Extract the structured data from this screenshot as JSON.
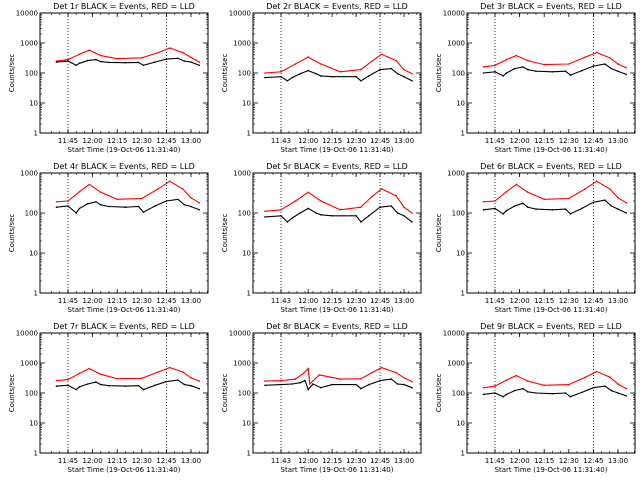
{
  "chart_data": [
    {
      "type": "line",
      "title": "Det 1r BLACK = Events, RED = LLD",
      "xlabel": "Start Time (19-Oct-06 11:31:40)",
      "ylabel": "Counts/sec",
      "yscale": "log",
      "ylim": [
        1,
        10000
      ],
      "xticks": [
        "11:45",
        "12:00",
        "12:15",
        "12:30",
        "12:45",
        "13:00"
      ],
      "yticks": [
        "1",
        "10",
        "100",
        "1000",
        "10000"
      ],
      "series": [
        {
          "name": "Events",
          "color": "#000000",
          "x": [
            "11:38",
            "11:45",
            "11:50",
            "11:52",
            "11:57",
            "12:02",
            "12:05",
            "12:10",
            "12:20",
            "12:28",
            "12:31",
            "12:38",
            "12:45",
            "12:52",
            "12:56",
            "13:00",
            "13:05"
          ],
          "y": [
            230,
            250,
            180,
            210,
            260,
            280,
            240,
            225,
            220,
            225,
            180,
            230,
            290,
            310,
            250,
            230,
            180
          ]
        },
        {
          "name": "LLD",
          "color": "#ff0000",
          "x": [
            "11:38",
            "11:45",
            "11:52",
            "11:58",
            "12:05",
            "12:15",
            "12:30",
            "12:40",
            "12:47",
            "12:55",
            "13:00",
            "13:05"
          ],
          "y": [
            250,
            280,
            420,
            580,
            380,
            300,
            320,
            480,
            680,
            480,
            330,
            230
          ]
        }
      ]
    },
    {
      "type": "line",
      "title": "Det 2r BLACK = Events, RED = LLD",
      "xlabel": "Start Time (19-Oct-06 11:31:40)",
      "ylabel": "Counts/sec",
      "yscale": "log",
      "ylim": [
        1,
        10000
      ],
      "xticks": [
        "11:43",
        "12:00",
        "12:15",
        "12:30",
        "12:45",
        "13:00"
      ],
      "yticks": [
        "1",
        "10",
        "100",
        "1000",
        "10000"
      ],
      "series": [
        {
          "name": "Events",
          "color": "#000000",
          "x": [
            "11:33",
            "11:43",
            "11:47",
            "11:50",
            "11:55",
            "12:00",
            "12:05",
            "12:08",
            "12:15",
            "12:30",
            "12:33",
            "12:38",
            "12:45",
            "12:52",
            "12:56",
            "13:00",
            "13:05"
          ],
          "y": [
            70,
            75,
            55,
            70,
            95,
            120,
            95,
            80,
            75,
            75,
            55,
            80,
            130,
            140,
            95,
            75,
            55
          ]
        },
        {
          "name": "LLD",
          "color": "#ff0000",
          "x": [
            "11:33",
            "11:43",
            "11:52",
            "12:00",
            "12:08",
            "12:20",
            "12:33",
            "12:40",
            "12:46",
            "12:55",
            "13:00",
            "13:05"
          ],
          "y": [
            100,
            110,
            200,
            340,
            200,
            110,
            130,
            250,
            420,
            260,
            130,
            95
          ]
        }
      ]
    },
    {
      "type": "line",
      "title": "Det 3r BLACK = Events, RED = LLD",
      "xlabel": "Start Time (19-Oct-06 11:31:40)",
      "ylabel": "Counts/sec",
      "yscale": "log",
      "ylim": [
        1,
        10000
      ],
      "xticks": [
        "11:45",
        "12:00",
        "12:15",
        "12:30",
        "12:45",
        "13:00"
      ],
      "yticks": [
        "1",
        "10",
        "100",
        "1000",
        "10000"
      ],
      "series": [
        {
          "name": "Events",
          "color": "#000000",
          "x": [
            "11:38",
            "11:45",
            "11:50",
            "11:52",
            "11:57",
            "12:02",
            "12:05",
            "12:10",
            "12:20",
            "12:28",
            "12:31",
            "12:38",
            "12:45",
            "12:52",
            "12:56",
            "13:00",
            "13:05"
          ],
          "y": [
            100,
            110,
            80,
            100,
            140,
            160,
            130,
            115,
            110,
            115,
            85,
            120,
            170,
            200,
            140,
            115,
            90
          ]
        },
        {
          "name": "LLD",
          "color": "#ff0000",
          "x": [
            "11:38",
            "11:45",
            "11:52",
            "11:58",
            "12:05",
            "12:15",
            "12:30",
            "12:40",
            "12:47",
            "12:55",
            "13:00",
            "13:05"
          ],
          "y": [
            160,
            180,
            280,
            380,
            260,
            190,
            200,
            340,
            480,
            320,
            200,
            150
          ]
        }
      ]
    },
    {
      "type": "line",
      "title": "Det 4r BLACK = Events, RED = LLD",
      "xlabel": "Start Time (19-Oct-06 11:31:40)",
      "ylabel": "Counts/sec",
      "yscale": "log",
      "ylim": [
        1,
        1000
      ],
      "xticks": [
        "11:45",
        "12:00",
        "12:15",
        "12:30",
        "12:45",
        "13:00"
      ],
      "yticks": [
        "1",
        "10",
        "100",
        "1000"
      ],
      "series": [
        {
          "name": "Events",
          "color": "#000000",
          "x": [
            "11:38",
            "11:45",
            "11:50",
            "11:52",
            "11:57",
            "12:02",
            "12:05",
            "12:10",
            "12:20",
            "12:28",
            "12:31",
            "12:38",
            "12:45",
            "12:52",
            "12:56",
            "13:00",
            "13:05"
          ],
          "y": [
            140,
            150,
            100,
            130,
            170,
            190,
            160,
            145,
            140,
            145,
            105,
            150,
            200,
            220,
            160,
            145,
            120
          ]
        },
        {
          "name": "LLD",
          "color": "#ff0000",
          "x": [
            "11:38",
            "11:45",
            "11:52",
            "11:58",
            "12:05",
            "12:15",
            "12:30",
            "12:40",
            "12:47",
            "12:55",
            "13:00",
            "13:05"
          ],
          "y": [
            190,
            200,
            340,
            520,
            330,
            220,
            230,
            400,
            620,
            400,
            240,
            180
          ]
        }
      ]
    },
    {
      "type": "line",
      "title": "Det 5r BLACK = Events, RED = LLD",
      "xlabel": "Start Time (19-Oct-06 11:31:40)",
      "ylabel": "Counts/sec",
      "yscale": "log",
      "ylim": [
        1,
        1000
      ],
      "xticks": [
        "11:43",
        "12:00",
        "12:15",
        "12:30",
        "12:45",
        "13:00"
      ],
      "yticks": [
        "1",
        "10",
        "100",
        "1000"
      ],
      "series": [
        {
          "name": "Events",
          "color": "#000000",
          "x": [
            "11:33",
            "11:43",
            "11:47",
            "11:50",
            "11:55",
            "12:00",
            "12:05",
            "12:08",
            "12:15",
            "12:30",
            "12:33",
            "12:38",
            "12:45",
            "12:52",
            "12:56",
            "13:00",
            "13:05"
          ],
          "y": [
            80,
            85,
            60,
            75,
            100,
            130,
            100,
            90,
            85,
            85,
            60,
            85,
            140,
            150,
            100,
            85,
            60
          ]
        },
        {
          "name": "LLD",
          "color": "#ff0000",
          "x": [
            "11:33",
            "11:43",
            "11:52",
            "12:00",
            "12:08",
            "12:20",
            "12:33",
            "12:40",
            "12:46",
            "12:55",
            "13:00",
            "13:05"
          ],
          "y": [
            110,
            120,
            200,
            330,
            200,
            120,
            140,
            260,
            400,
            270,
            140,
            100
          ]
        }
      ]
    },
    {
      "type": "line",
      "title": "Det 6r BLACK = Events, RED = LLD",
      "xlabel": "Start Time (19-Oct-06 11:31:40)",
      "ylabel": "Counts/sec",
      "yscale": "log",
      "ylim": [
        1,
        1000
      ],
      "xticks": [
        "11:45",
        "12:00",
        "12:15",
        "12:30",
        "12:45",
        "13:00"
      ],
      "yticks": [
        "1",
        "10",
        "100",
        "1000"
      ],
      "series": [
        {
          "name": "Events",
          "color": "#000000",
          "x": [
            "11:38",
            "11:45",
            "11:50",
            "11:52",
            "11:57",
            "12:02",
            "12:05",
            "12:10",
            "12:20",
            "12:28",
            "12:31",
            "12:38",
            "12:45",
            "12:52",
            "12:56",
            "13:00",
            "13:05"
          ],
          "y": [
            120,
            130,
            95,
            115,
            150,
            175,
            140,
            125,
            120,
            125,
            95,
            130,
            185,
            210,
            150,
            125,
            100
          ]
        },
        {
          "name": "LLD",
          "color": "#ff0000",
          "x": [
            "11:38",
            "11:45",
            "11:52",
            "11:58",
            "12:05",
            "12:15",
            "12:30",
            "12:40",
            "12:47",
            "12:55",
            "13:00",
            "13:05"
          ],
          "y": [
            190,
            200,
            340,
            520,
            330,
            220,
            230,
            400,
            620,
            400,
            240,
            180
          ]
        }
      ]
    },
    {
      "type": "line",
      "title": "Det 7r BLACK = Events, RED = LLD",
      "xlabel": "Start Time (19-Oct-06 11:31:40)",
      "ylabel": "Counts/sec",
      "yscale": "log",
      "ylim": [
        1,
        10000
      ],
      "xticks": [
        "11:45",
        "12:00",
        "12:15",
        "12:30",
        "12:45",
        "13:00"
      ],
      "yticks": [
        "1",
        "10",
        "100",
        "1000",
        "10000"
      ],
      "series": [
        {
          "name": "Events",
          "color": "#000000",
          "x": [
            "11:38",
            "11:45",
            "11:50",
            "11:52",
            "11:57",
            "12:02",
            "12:05",
            "12:10",
            "12:20",
            "12:28",
            "12:31",
            "12:38",
            "12:45",
            "12:52",
            "12:56",
            "13:00",
            "13:05"
          ],
          "y": [
            170,
            180,
            130,
            160,
            200,
            230,
            190,
            175,
            170,
            175,
            130,
            180,
            240,
            270,
            190,
            175,
            140
          ]
        },
        {
          "name": "LLD",
          "color": "#ff0000",
          "x": [
            "11:38",
            "11:45",
            "11:52",
            "11:58",
            "12:05",
            "12:15",
            "12:30",
            "12:40",
            "12:47",
            "12:55",
            "13:00",
            "13:05"
          ],
          "y": [
            260,
            280,
            450,
            650,
            420,
            300,
            310,
            500,
            700,
            500,
            320,
            250
          ]
        }
      ]
    },
    {
      "type": "line",
      "title": "Det 8r BLACK = Events, RED = LLD",
      "xlabel": "Start Time (19-Oct-06 11:31:40)",
      "ylabel": "Counts/sec",
      "yscale": "log",
      "ylim": [
        1,
        10000
      ],
      "xticks": [
        "11:43",
        "12:00",
        "12:15",
        "12:30",
        "12:45",
        "13:00"
      ],
      "yticks": [
        "1",
        "10",
        "100",
        "1000",
        "10000"
      ],
      "series": [
        {
          "name": "Events",
          "color": "#000000",
          "x": [
            "11:33",
            "11:43",
            "11:50",
            "11:55",
            "11:58",
            "12:00",
            "12:03",
            "12:08",
            "12:15",
            "12:30",
            "12:33",
            "12:38",
            "12:45",
            "12:52",
            "12:56",
            "13:00",
            "13:05"
          ],
          "y": [
            180,
            190,
            200,
            220,
            260,
            130,
            200,
            150,
            190,
            190,
            140,
            190,
            260,
            290,
            200,
            190,
            150
          ]
        },
        {
          "name": "LLD",
          "color": "#ff0000",
          "x": [
            "11:33",
            "11:43",
            "11:52",
            "11:57",
            "12:00",
            "12:01",
            "12:07",
            "12:20",
            "12:33",
            "12:40",
            "12:46",
            "12:55",
            "13:00",
            "13:05"
          ],
          "y": [
            250,
            260,
            290,
            450,
            650,
            200,
            400,
            290,
            300,
            480,
            700,
            480,
            320,
            240
          ]
        }
      ]
    },
    {
      "type": "line",
      "title": "Det 9r BLACK = Events, RED = LLD",
      "xlabel": "Start Time (19-Oct-06 11:31:40)",
      "ylabel": "Counts/sec",
      "yscale": "log",
      "ylim": [
        1,
        10000
      ],
      "xticks": [
        "11:45",
        "12:00",
        "12:15",
        "12:30",
        "12:45",
        "13:00"
      ],
      "yticks": [
        "1",
        "10",
        "100",
        "1000",
        "10000"
      ],
      "series": [
        {
          "name": "Events",
          "color": "#000000",
          "x": [
            "11:38",
            "11:45",
            "11:50",
            "11:52",
            "11:57",
            "12:02",
            "12:05",
            "12:10",
            "12:20",
            "12:28",
            "12:31",
            "12:38",
            "12:45",
            "12:52",
            "12:56",
            "13:00",
            "13:05"
          ],
          "y": [
            90,
            100,
            75,
            90,
            120,
            140,
            110,
            100,
            95,
            100,
            75,
            105,
            150,
            170,
            120,
            100,
            80
          ]
        },
        {
          "name": "LLD",
          "color": "#ff0000",
          "x": [
            "11:38",
            "11:45",
            "11:52",
            "11:58",
            "12:05",
            "12:15",
            "12:30",
            "12:40",
            "12:47",
            "12:55",
            "13:00",
            "13:05"
          ],
          "y": [
            150,
            170,
            270,
            380,
            250,
            180,
            190,
            330,
            520,
            340,
            200,
            140
          ]
        }
      ]
    }
  ]
}
